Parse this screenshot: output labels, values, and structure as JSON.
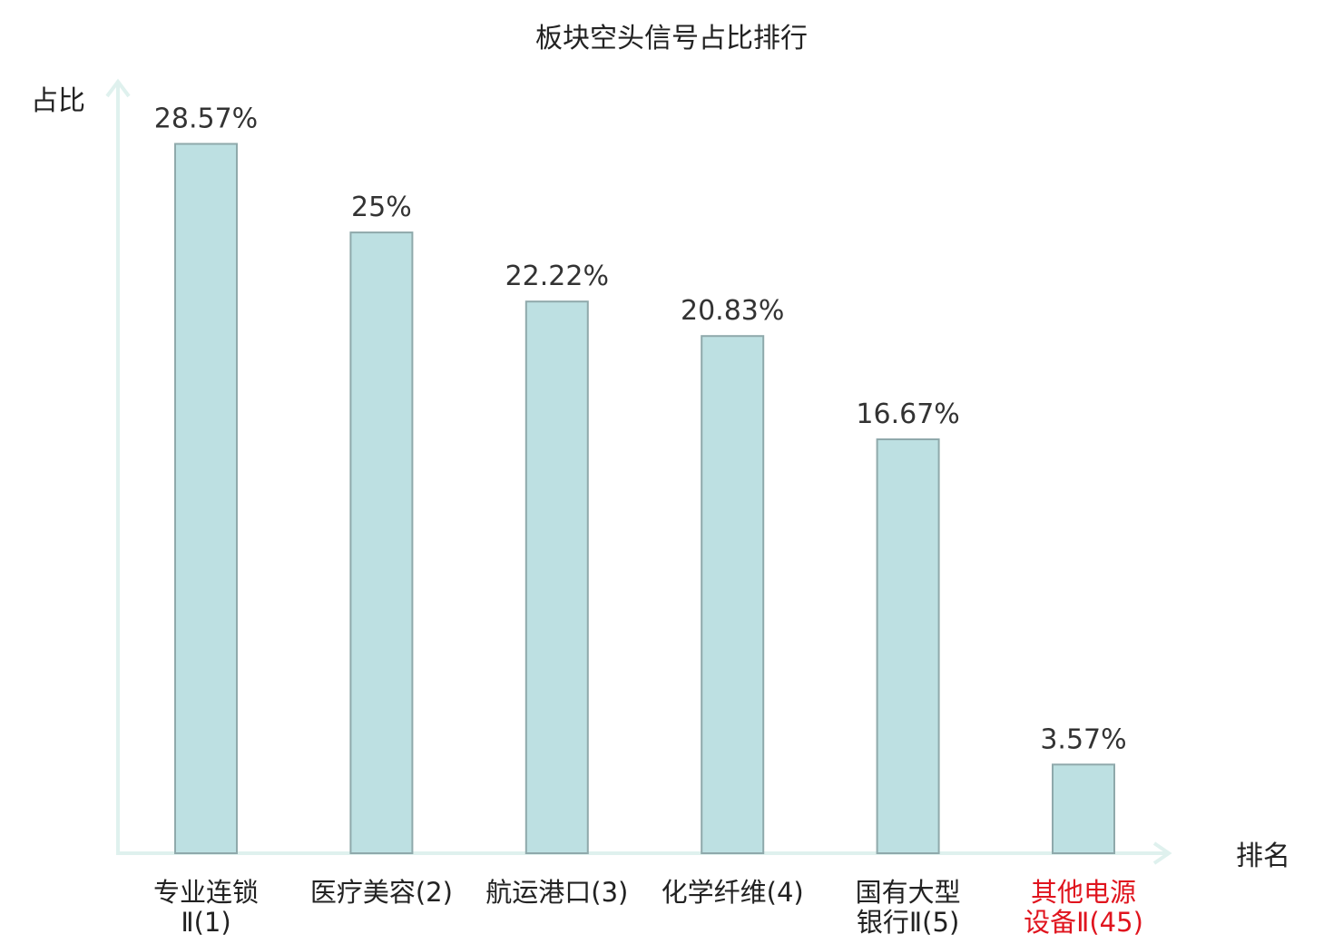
{
  "chart_data": {
    "type": "bar",
    "title": "板块空头信号占比排行",
    "ylabel": "占比",
    "xlabel": "排名",
    "categories": [
      [
        "专业连锁",
        "Ⅱ(1)"
      ],
      [
        "医疗美容(2)"
      ],
      [
        "航运港口(3)"
      ],
      [
        "化学纤维(4)"
      ],
      [
        "国有大型",
        "银行Ⅱ(5)"
      ],
      [
        "其他电源",
        "设备Ⅱ(45)"
      ]
    ],
    "values": [
      28.57,
      25,
      22.22,
      20.83,
      16.67,
      3.57
    ],
    "value_labels": [
      "28.57%",
      "25%",
      "22.22%",
      "20.83%",
      "16.67%",
      "3.57%"
    ],
    "highlight_index": 5,
    "ylim": [
      0,
      31
    ],
    "grid": false,
    "colors": {
      "bar_fill": "#bde0e2",
      "bar_stroke": "#8fa9ab",
      "axis": "#dff1ee",
      "highlight_text": "#e0141e"
    }
  }
}
